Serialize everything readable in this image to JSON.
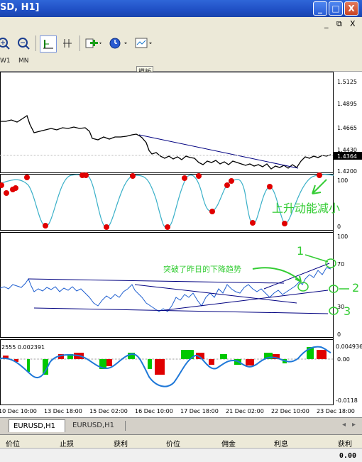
{
  "window": {
    "title": "SD, H1]",
    "buttons": [
      "_",
      "□",
      "X"
    ]
  },
  "toolbar": {
    "mdi_buttons": [
      "_",
      "⧉",
      "X"
    ],
    "icons": [
      "zoom-in-icon",
      "zoom-out-icon",
      "chart-type-icon",
      "period-separator-icon",
      "indicators-icon",
      "clock-icon",
      "templates-icon"
    ]
  },
  "timeframes": [
    "W1",
    "MN"
  ],
  "tooltip": "模板",
  "price_axis": [
    "1.5125",
    "1.4895",
    "1.4665",
    "1.4430",
    "1.4364",
    "1.4200"
  ],
  "stoch_axis": [
    "100",
    "0"
  ],
  "rsi_axis": [
    "100",
    "70",
    "30",
    "0"
  ],
  "macd_axis": [
    "0.004936",
    "0.00",
    "-0.0118"
  ],
  "macd_label": "2555 0.002391",
  "time_axis": [
    "10 Dec 10:00",
    "13 Dec 18:00",
    "15 Dec 02:00",
    "16 Dec 10:00",
    "17 Dec 18:00",
    "21 Dec 02:00",
    "22 Dec 10:00",
    "23 Dec 18:00"
  ],
  "annotations": {
    "stoch_note": "上升动能减小",
    "rsi_note": "突破了昨日的下降趋势",
    "num1": "1",
    "num2": "2",
    "num3": "3"
  },
  "tabs": [
    "EURUSD,H1",
    "EURUSD,H1"
  ],
  "terminal_headers": [
    "价位",
    "止损",
    "获利",
    "价位",
    "佣金",
    "利息",
    "获利"
  ],
  "balance": "0.00",
  "colors": {
    "stoch_line": "#3ab0c8",
    "rsi_line": "#1f5fd0",
    "trend_line": "#000080",
    "annotation": "#33cc33",
    "red_dot": "#e00000",
    "macd_green": "#00c800",
    "macd_red": "#e00000",
    "macd_signal": "#1f78d8"
  }
}
